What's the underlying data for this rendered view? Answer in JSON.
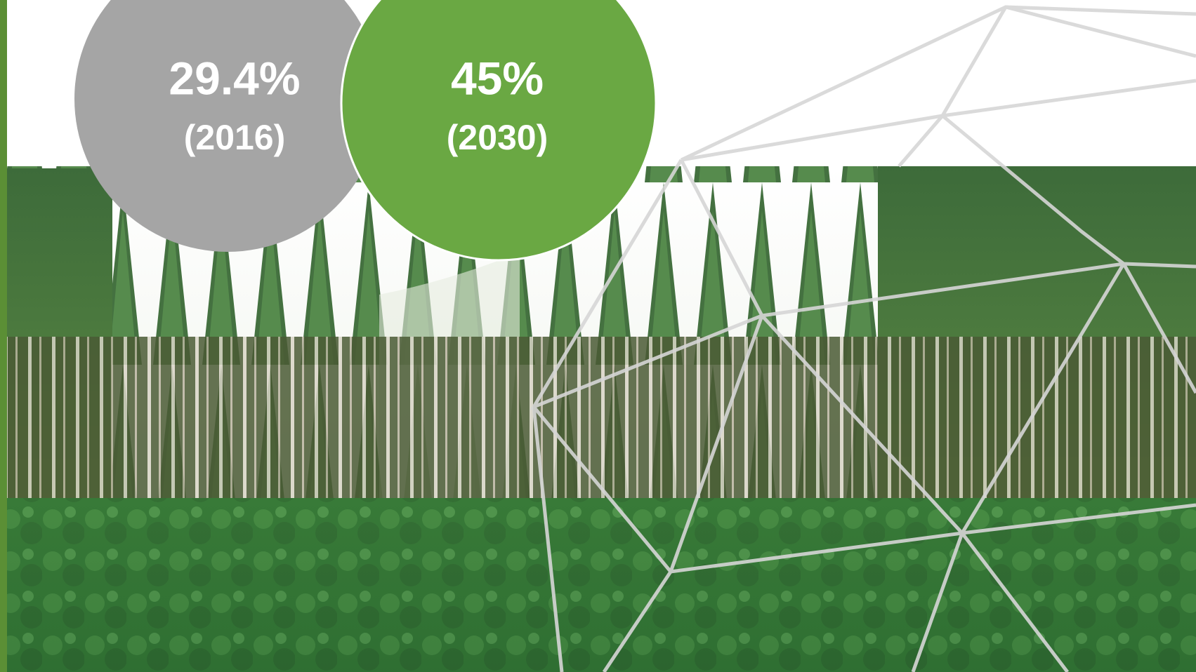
{
  "circles": [
    {
      "value": "29.4%",
      "year": "(2016)"
    },
    {
      "value": "45%",
      "year": "(2030)"
    }
  ]
}
